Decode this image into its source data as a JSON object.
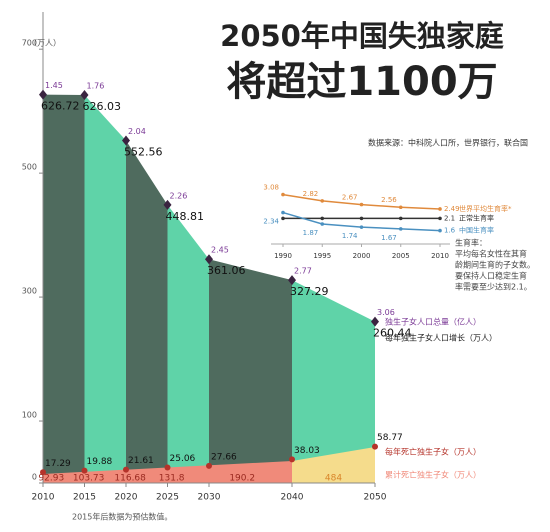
{
  "chart_data": [
    {
      "type": "area",
      "title": "2050年中国失独家庭",
      "subtitle": "将超过1100万",
      "source": "数据来源：中科院人口所，世界银行，联合国",
      "note": "2015年后数据为预估数值。",
      "y_unit": "（万人）",
      "x": [
        2010,
        2015,
        2020,
        2025,
        2030,
        2040,
        2050
      ],
      "xlim": [
        2010,
        2050
      ],
      "xticks": [
        2010,
        2015,
        2020,
        2025,
        2030,
        2040,
        2050
      ],
      "ylim": [
        0,
        760
      ],
      "yticks": [
        0,
        100,
        300,
        500,
        700
      ],
      "series": [
        {
          "name": "独生子女人口总量（亿人）",
          "color": "#7b3a96",
          "values": [
            1.45,
            1.76,
            2.04,
            2.26,
            2.45,
            2.77,
            3.06
          ]
        },
        {
          "name": "每年独生子女人口增长（万人）",
          "color": "#4f6b5e",
          "light_color": "#5fd3a8",
          "values": [
            626.72,
            626.03,
            552.56,
            448.81,
            361.06,
            327.29,
            260.44
          ]
        },
        {
          "name": "每年死亡独生子女（万人）",
          "color": "#b5332a",
          "values": [
            17.29,
            19.88,
            21.61,
            25.06,
            27.66,
            38.03,
            58.77
          ]
        }
      ],
      "bands": {
        "name": "累计死亡独生子女（万人）",
        "color": "#f08a7a",
        "last_color": "#f5dc8c",
        "values": [
          92.93,
          103.73,
          116.68,
          131.8,
          190.2,
          484
        ]
      }
    },
    {
      "type": "line",
      "x": [
        1990,
        1995,
        2000,
        2005,
        2010
      ],
      "xlim": [
        1990,
        2010
      ],
      "xticks": [
        1990,
        1995,
        2000,
        2005,
        2010
      ],
      "ylim": [
        1.5,
        3.2
      ],
      "series": [
        {
          "name": "世界平均生育率*",
          "color": "#e08a3c",
          "values": [
            3.08,
            2.82,
            2.67,
            2.56,
            2.49
          ]
        },
        {
          "name": "正常生育率",
          "color": "#333333",
          "values": [
            2.1,
            2.1,
            2.1,
            2.1,
            2.1
          ]
        },
        {
          "name": "中国生育率",
          "color": "#4a90c0",
          "values": [
            2.34,
            1.87,
            1.74,
            1.67,
            1.6
          ]
        }
      ],
      "note_lines": [
        "生育率：",
        "平均每名女性在其育",
        "龄期间生育的子女数。",
        "要保持人口稳定生育",
        "率需要至少达到2.1。"
      ]
    }
  ]
}
